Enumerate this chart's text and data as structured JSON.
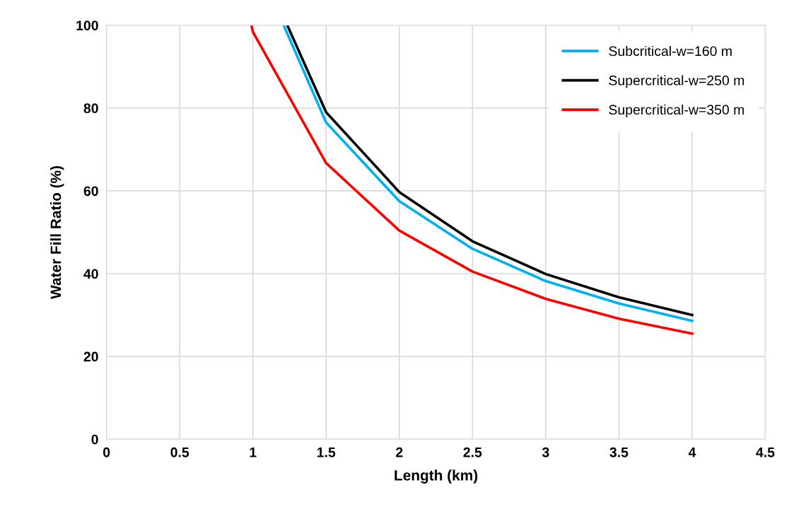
{
  "chart_data": {
    "type": "line",
    "xlabel": "Length (km)",
    "ylabel": "Water Fill Ratio (%)",
    "xlim": [
      0,
      4.5
    ],
    "xticks": [
      0,
      0.5,
      1,
      1.5,
      2,
      2.5,
      3,
      3.5,
      4,
      4.5
    ],
    "ylim": [
      0,
      100
    ],
    "yticks": [
      0,
      20,
      40,
      60,
      80,
      100
    ],
    "grid": true,
    "legend": "top right",
    "marker": "none",
    "line_style": "solid",
    "series": [
      {
        "name": "Subcritical-w=160 m",
        "color": "#00b0f0",
        "x": [
          1.21,
          1.5,
          2,
          2.5,
          3,
          3.5,
          4
        ],
        "values": [
          100,
          76.5,
          57.5,
          46,
          38.2,
          32.8,
          28.6
        ]
      },
      {
        "name": "Supercritical-w=250 m",
        "color": "#000000",
        "x": [
          1.235,
          1.5,
          2,
          2.5,
          3,
          3.5,
          4
        ],
        "values": [
          100,
          79,
          59.7,
          47.8,
          39.9,
          34.3,
          30
        ]
      },
      {
        "name": "Supercritical-w=350 m",
        "color": "#ff0000",
        "x": [
          0.99,
          1,
          1.5,
          2,
          2.5,
          3,
          3.5,
          4
        ],
        "values": [
          100,
          98.4,
          66.7,
          50.4,
          40.5,
          33.9,
          29.1,
          25.5
        ]
      }
    ]
  }
}
